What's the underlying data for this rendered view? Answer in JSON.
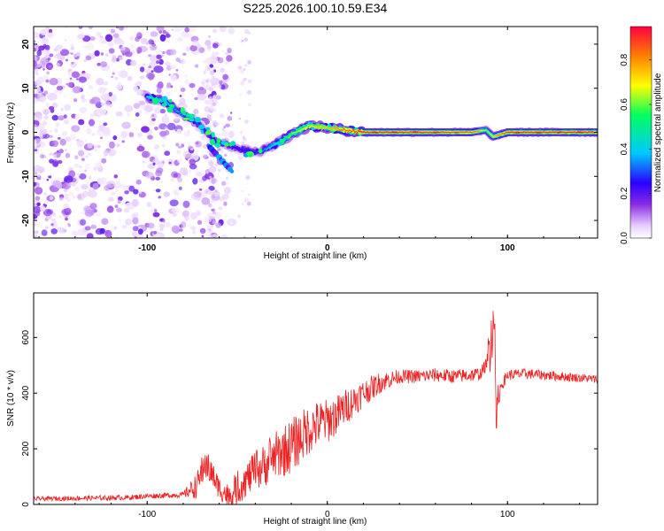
{
  "figure": {
    "title": "S225.2026.100.10.59.E34"
  },
  "chart_data": [
    {
      "type": "heatmap",
      "title": "S225.2026.100.10.59.E34",
      "xlabel": "Height of straight line (km)",
      "ylabel": "Frequency (Hz)",
      "xlim": [
        -163,
        150
      ],
      "ylim": [
        -24,
        24
      ],
      "x_ticks": [
        -100,
        0,
        100
      ],
      "y_ticks": [
        -20,
        -10,
        0,
        10,
        20
      ],
      "colorbar": {
        "label": "Normalized spectral amplitude",
        "range": [
          0,
          0.95
        ],
        "ticks": [
          0.0,
          0.2,
          0.4,
          0.6,
          0.8
        ],
        "colormap": [
          "#ffffff",
          "#e6ccff",
          "#8a2be2",
          "#2a00ff",
          "#00c8ff",
          "#00ff60",
          "#ffff00",
          "#ff8000",
          "#ff0040"
        ]
      },
      "ridge": {
        "x": [
          -100,
          -90,
          -80,
          -72,
          -62,
          -55,
          -47,
          -38,
          -30,
          -20,
          -10,
          0,
          10,
          20,
          50,
          80,
          88,
          92,
          100,
          150
        ],
        "frequency": [
          8,
          7,
          4,
          2,
          -2,
          -3,
          -4,
          -4.5,
          -3,
          -0.5,
          1.5,
          1,
          0.5,
          0,
          0,
          0,
          0.5,
          -1,
          0,
          0
        ],
        "amplitude": [
          0.45,
          0.4,
          0.35,
          0.3,
          0.25,
          0.25,
          0.25,
          0.3,
          0.45,
          0.6,
          0.7,
          0.75,
          0.85,
          0.9,
          0.9,
          0.85,
          0.6,
          0.7,
          0.9,
          0.9
        ]
      }
    },
    {
      "type": "line",
      "xlabel": "Height of straight line (km)",
      "ylabel": "SNR (10 * v/v)",
      "xlim": [
        -163,
        150
      ],
      "ylim": [
        0,
        760
      ],
      "x_ticks": [
        -100,
        0,
        100
      ],
      "y_ticks": [
        0,
        200,
        400,
        600
      ],
      "color": "#ee2222",
      "envelope": {
        "x": [
          -163,
          -110,
          -100,
          -80,
          -72,
          -68,
          -65,
          -60,
          -55,
          -50,
          -45,
          -40,
          -35,
          -30,
          -25,
          -20,
          -15,
          -10,
          -5,
          0,
          5,
          10,
          20,
          30,
          40,
          50,
          60,
          70,
          80,
          85,
          88,
          90,
          92,
          93,
          94,
          96,
          100,
          110,
          120,
          130,
          140,
          150
        ],
        "snr": [
          20,
          25,
          30,
          35,
          70,
          150,
          120,
          60,
          30,
          50,
          90,
          120,
          140,
          170,
          190,
          210,
          240,
          270,
          290,
          300,
          320,
          350,
          400,
          440,
          460,
          460,
          465,
          460,
          465,
          470,
          500,
          560,
          650,
          600,
          300,
          420,
          465,
          470,
          465,
          460,
          455,
          450
        ]
      },
      "noise_amplitude": {
        "x": [
          -163,
          -80,
          -70,
          -60,
          -40,
          -20,
          0,
          20,
          40,
          80,
          100,
          150
        ],
        "amp": [
          8,
          10,
          60,
          40,
          70,
          100,
          80,
          50,
          25,
          25,
          20,
          15
        ]
      }
    }
  ]
}
